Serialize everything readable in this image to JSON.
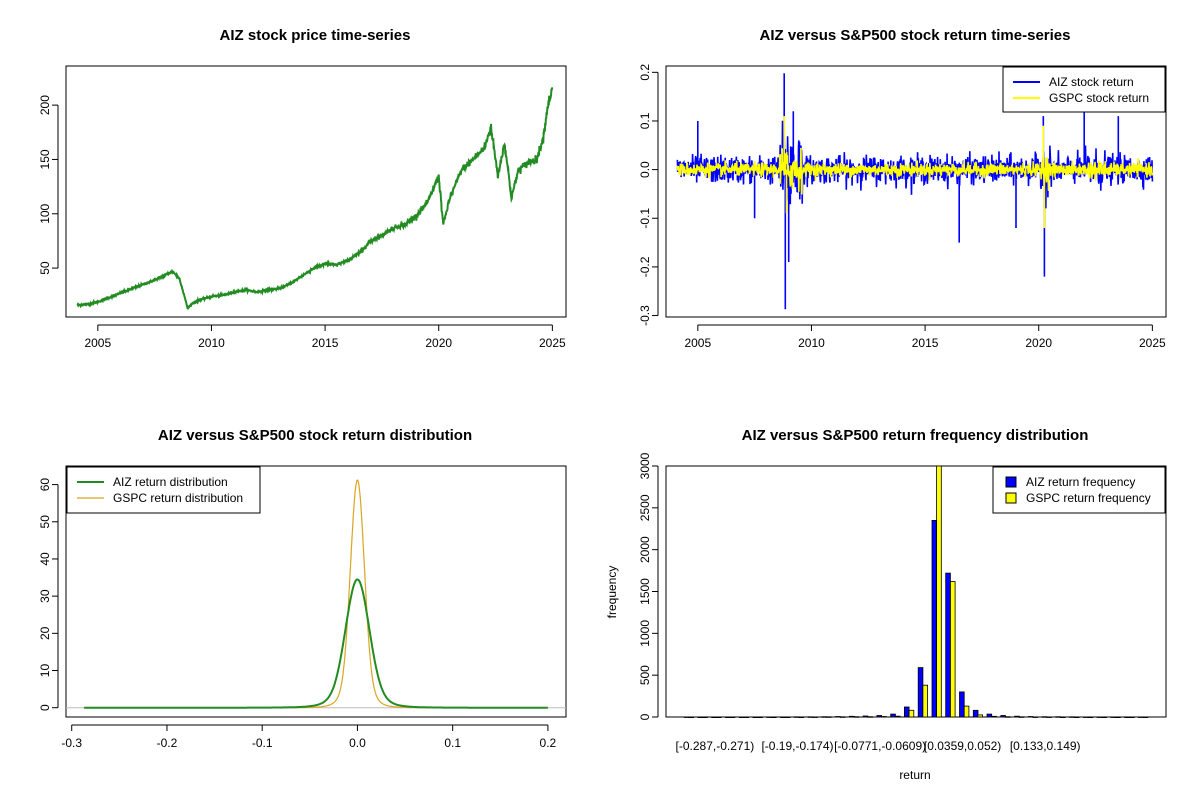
{
  "chart_data": [
    {
      "type": "line",
      "title": "AIZ stock price time-series",
      "xlabel": "",
      "ylabel": "",
      "xlim": [
        2003.6,
        2025.6
      ],
      "ylim": [
        5,
        236
      ],
      "x_ticks": [
        "2005",
        "2010",
        "2015",
        "2020",
        "2025"
      ],
      "y_ticks": [
        "50",
        "100",
        "150",
        "200"
      ],
      "grid": false,
      "series": [
        {
          "color": "#228B22",
          "x": [
            2004.1,
            2004.6,
            2005.0,
            2005.5,
            2006.0,
            2006.5,
            2007.0,
            2007.5,
            2008.0,
            2008.3,
            2008.6,
            2008.8,
            2008.95,
            2009.2,
            2009.5,
            2010.0,
            2010.5,
            2011.0,
            2011.5,
            2012.0,
            2012.5,
            2013.0,
            2013.5,
            2014.0,
            2014.5,
            2015.0,
            2015.5,
            2016.0,
            2016.5,
            2017.0,
            2017.5,
            2018.0,
            2018.5,
            2019.0,
            2019.5,
            2020.0,
            2020.2,
            2020.5,
            2021.0,
            2021.5,
            2022.0,
            2022.3,
            2022.6,
            2022.9,
            2023.2,
            2023.5,
            2024.0,
            2024.3,
            2024.6,
            2024.8,
            2025.0
          ],
          "values": [
            16,
            17,
            19,
            23,
            27,
            31,
            35,
            39,
            44,
            47,
            40,
            25,
            13,
            18,
            21,
            24,
            25,
            28,
            30,
            28,
            30,
            31,
            36,
            43,
            50,
            54,
            53,
            57,
            64,
            75,
            80,
            87,
            90,
            98,
            110,
            135,
            90,
            115,
            140,
            150,
            160,
            180,
            135,
            165,
            115,
            140,
            148,
            150,
            170,
            200,
            215
          ]
        }
      ]
    },
    {
      "type": "line",
      "title": "AIZ versus S&P500 stock return time-series",
      "xlabel": "",
      "ylabel": "",
      "xlim": [
        2003.6,
        2025.6
      ],
      "ylim": [
        -0.303,
        0.213
      ],
      "x_ticks": [
        "2005",
        "2010",
        "2015",
        "2020",
        "2025"
      ],
      "y_ticks": [
        "-0.3",
        "-0.2",
        "-0.1",
        "0.0",
        "0.1",
        "0.2"
      ],
      "grid": false,
      "legend": "top-right",
      "series": [
        {
          "name": "AIZ stock return",
          "color": "#0000FF",
          "amplitude": 0.025,
          "extremes": [
            [
              2008.8,
              0.198
            ],
            [
              2008.85,
              -0.287
            ],
            [
              2009.0,
              -0.19
            ],
            [
              2009.2,
              0.12
            ],
            [
              2005.0,
              0.1
            ],
            [
              2020.25,
              -0.22
            ],
            [
              2020.2,
              0.11
            ],
            [
              2016.5,
              -0.15
            ],
            [
              2022.0,
              0.12
            ],
            [
              2023.5,
              0.11
            ],
            [
              2007.5,
              -0.1
            ],
            [
              2019.0,
              -0.12
            ]
          ]
        },
        {
          "name": "GSPC stock return",
          "color": "#FFFF00",
          "amplitude": 0.012,
          "extremes": [
            [
              2008.8,
              0.11
            ],
            [
              2008.9,
              -0.09
            ],
            [
              2020.2,
              0.09
            ],
            [
              2020.25,
              -0.12
            ]
          ]
        }
      ]
    },
    {
      "type": "line",
      "title": "AIZ versus S&P500 stock return distribution",
      "xlabel": "",
      "ylabel": "",
      "xlim": [
        -0.306,
        0.219
      ],
      "ylim": [
        -2.5,
        65
      ],
      "x_ticks": [
        "-0.3",
        "-0.2",
        "-0.1",
        "0.0",
        "0.1",
        "0.2"
      ],
      "y_ticks": [
        "0",
        "10",
        "20",
        "30",
        "40",
        "50",
        "60"
      ],
      "grid": false,
      "legend": "top-left",
      "series": [
        {
          "name": "AIZ return distribution",
          "color": "#228B22",
          "peak": 34.5,
          "sd": 0.011,
          "range": [
            -0.287,
            0.2
          ]
        },
        {
          "name": "GSPC return distribution",
          "color": "#DAA520",
          "peak": 61.2,
          "sd": 0.0065,
          "range": [
            -0.12,
            0.12
          ]
        }
      ]
    },
    {
      "type": "bar",
      "title": "AIZ versus S&P500 return frequency distribution",
      "xlabel": "return",
      "ylabel": "frequency",
      "ylim": [
        0,
        3000
      ],
      "y_ticks": [
        "0",
        "500",
        "1000",
        "1500",
        "2000",
        "2500",
        "3000"
      ],
      "x_tick_labels": [
        "[-0.287,-0.271)",
        "[-0.19,-0.174)",
        "[-0.0771,-0.0609)",
        "[0.0359,0.052)",
        "[0.133,0.149)"
      ],
      "grid": false,
      "legend": "top-right",
      "series": [
        {
          "name": "AIZ return frequency",
          "color": "#0000FF",
          "values": [
            1,
            0,
            0,
            0,
            0,
            0,
            1,
            0,
            2,
            2,
            4,
            6,
            8,
            12,
            18,
            35,
            120,
            590,
            2350,
            1720,
            300,
            80,
            35,
            18,
            10,
            6,
            4,
            3,
            2,
            1,
            1,
            1,
            0,
            1
          ]
        },
        {
          "name": "GSPC return frequency",
          "color": "#FFFF00",
          "values": [
            0,
            0,
            0,
            0,
            0,
            0,
            0,
            0,
            0,
            1,
            2,
            2,
            3,
            4,
            6,
            10,
            80,
            380,
            3000,
            1620,
            130,
            25,
            8,
            4,
            2,
            1,
            1,
            0,
            0,
            0,
            0,
            0,
            0,
            0
          ]
        }
      ]
    }
  ]
}
